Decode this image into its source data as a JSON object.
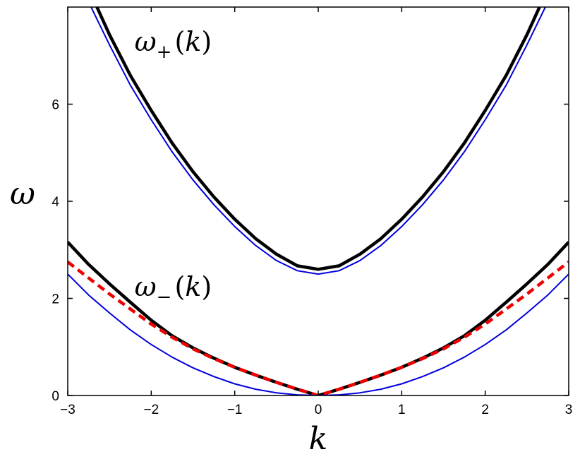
{
  "chart_data": {
    "type": "line",
    "xlabel": "k",
    "ylabel": "ω",
    "xlim": [
      -3,
      3
    ],
    "ylim": [
      0,
      8
    ],
    "xticks": [
      -3,
      -2,
      -1,
      0,
      1,
      2,
      3
    ],
    "xtick_labels": [
      "−3",
      "−2",
      "−1",
      "0",
      "1",
      "2",
      "3"
    ],
    "yticks": [
      0,
      2,
      4,
      6
    ],
    "ytick_labels": [
      "0",
      "2",
      "4",
      "6"
    ],
    "grid": false,
    "annotations": [
      {
        "omega": "ω",
        "sub": "+",
        "arg": "(k)",
        "k": -2.2,
        "w": 7.1
      },
      {
        "omega": "ω",
        "sub": "−",
        "arg": "(k)",
        "k": -2.2,
        "w": 2.05
      }
    ],
    "series": [
      {
        "curve": "upper-thick",
        "color": "#000000",
        "style": "solid",
        "width": 4.5,
        "x": [
          -2.65,
          -2.5,
          -2.25,
          -2.0,
          -1.75,
          -1.5,
          -1.25,
          -1.0,
          -0.75,
          -0.5,
          -0.25,
          0.0,
          0.25,
          0.5,
          0.75,
          1.0,
          1.25,
          1.5,
          1.75,
          2.0,
          2.25,
          2.5,
          2.65
        ],
        "y": [
          8.0,
          7.43,
          6.59,
          5.87,
          5.2,
          4.61,
          4.09,
          3.63,
          3.23,
          2.91,
          2.67,
          2.6,
          2.67,
          2.91,
          3.23,
          3.63,
          4.09,
          4.61,
          5.2,
          5.87,
          6.59,
          7.43,
          8.0
        ]
      },
      {
        "curve": "upper-thin",
        "color": "#0000dd",
        "style": "solid",
        "width": 2,
        "x": [
          -2.72,
          -2.5,
          -2.25,
          -2.0,
          -1.75,
          -1.5,
          -1.25,
          -1.0,
          -0.75,
          -0.5,
          -0.25,
          0.0,
          0.25,
          0.5,
          0.75,
          1.0,
          1.25,
          1.5,
          1.75,
          2.0,
          2.25,
          2.5,
          2.72
        ],
        "y": [
          8.0,
          7.22,
          6.39,
          5.68,
          5.02,
          4.44,
          3.93,
          3.48,
          3.09,
          2.78,
          2.57,
          2.5,
          2.57,
          2.78,
          3.09,
          3.48,
          3.93,
          4.44,
          5.02,
          5.68,
          6.39,
          7.22,
          8.0
        ]
      },
      {
        "curve": "lower-thick",
        "color": "#000000",
        "style": "solid",
        "width": 4.5,
        "x": [
          -3.0,
          -2.75,
          -2.5,
          -2.25,
          -2.0,
          -1.75,
          -1.5,
          -1.25,
          -1.0,
          -0.75,
          -0.5,
          -0.25,
          0.0,
          0.25,
          0.5,
          0.75,
          1.0,
          1.25,
          1.5,
          1.75,
          2.0,
          2.25,
          2.5,
          2.75,
          3.0
        ],
        "y": [
          3.16,
          2.7,
          2.3,
          1.92,
          1.55,
          1.23,
          0.98,
          0.77,
          0.58,
          0.42,
          0.27,
          0.13,
          0.0,
          0.13,
          0.27,
          0.42,
          0.58,
          0.77,
          0.98,
          1.23,
          1.55,
          1.92,
          2.3,
          2.7,
          3.16
        ]
      },
      {
        "curve": "lower-dashed",
        "color": "#ee0000",
        "style": "dashed",
        "width": 4.5,
        "x": [
          -3.0,
          -2.75,
          -2.5,
          -2.25,
          -2.0,
          -1.75,
          -1.5,
          -1.25,
          -1.0,
          -0.75,
          -0.5,
          -0.25,
          0.0,
          0.25,
          0.5,
          0.75,
          1.0,
          1.25,
          1.5,
          1.75,
          2.0,
          2.25,
          2.5,
          2.75,
          3.0
        ],
        "y": [
          2.75,
          2.42,
          2.09,
          1.78,
          1.47,
          1.2,
          0.96,
          0.76,
          0.58,
          0.42,
          0.27,
          0.13,
          0.0,
          0.13,
          0.27,
          0.42,
          0.58,
          0.76,
          0.96,
          1.2,
          1.47,
          1.78,
          2.09,
          2.42,
          2.75
        ]
      },
      {
        "curve": "lower-thin",
        "color": "#0000dd",
        "style": "solid",
        "width": 2,
        "x": [
          -3.0,
          -2.75,
          -2.5,
          -2.25,
          -2.0,
          -1.75,
          -1.5,
          -1.25,
          -1.0,
          -0.75,
          -0.5,
          -0.25,
          0.0,
          0.25,
          0.5,
          0.75,
          1.0,
          1.25,
          1.5,
          1.75,
          2.0,
          2.25,
          2.5,
          2.75,
          3.0
        ],
        "y": [
          2.5,
          2.07,
          1.7,
          1.35,
          1.05,
          0.79,
          0.57,
          0.39,
          0.24,
          0.13,
          0.055,
          0.013,
          0.0,
          0.013,
          0.055,
          0.13,
          0.24,
          0.39,
          0.57,
          0.79,
          1.05,
          1.35,
          1.7,
          2.07,
          2.5
        ]
      }
    ]
  }
}
